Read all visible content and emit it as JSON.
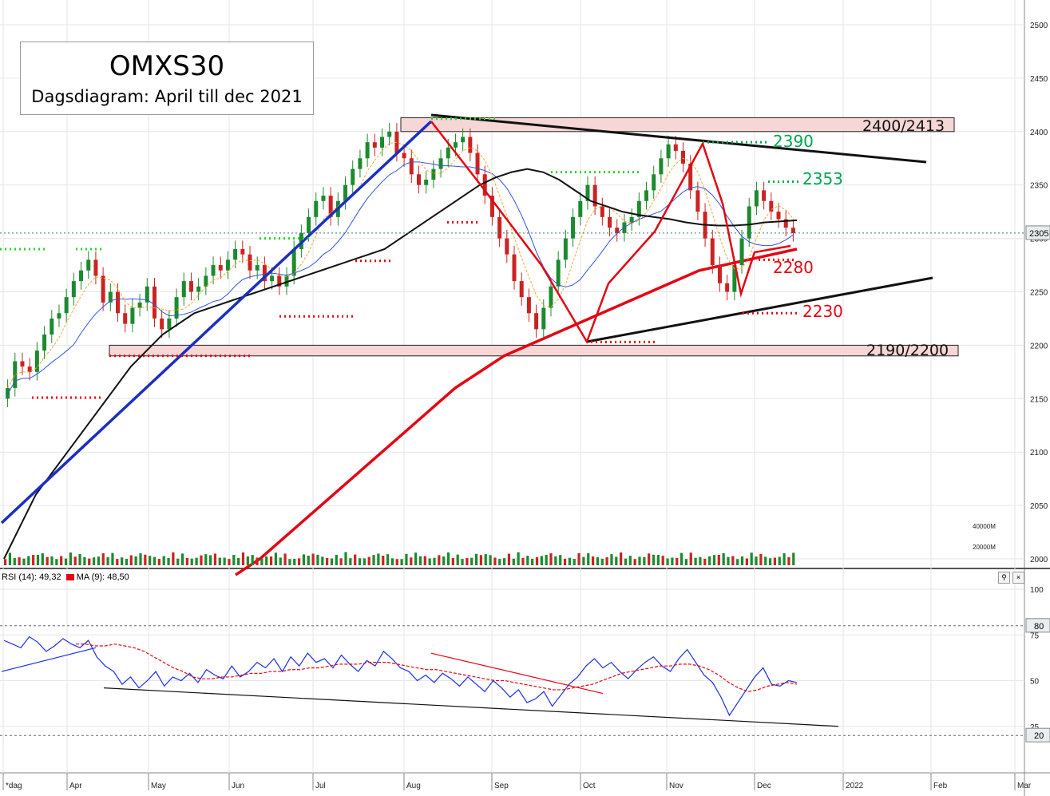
{
  "chart_data": {
    "type": "candlestick",
    "title": "OMXS30",
    "subtitle": "Dagsdiagram: April till dec 2021",
    "x_ticks": [
      "*dag",
      "Apr",
      "May",
      "Jun",
      "Jul",
      "Aug",
      "Sep",
      "Oct",
      "Nov",
      "Dec",
      "2022",
      "Feb",
      "Mar"
    ],
    "price_axis": {
      "ticks": [
        2000,
        2050,
        2100,
        2150,
        2200,
        2250,
        2300,
        2350,
        2400,
        2450,
        2500
      ],
      "ylim": [
        1990,
        2510
      ]
    },
    "last_price": "2305",
    "volume_axis": {
      "ticks": [
        "40000M",
        "20000M"
      ]
    },
    "zones": [
      {
        "label": "2400/2413",
        "low": 2400,
        "high": 2413
      },
      {
        "label": "2190/2200",
        "low": 2190,
        "high": 2200
      }
    ],
    "levels": [
      {
        "label": "2390",
        "value": 2390,
        "color": "#00a651"
      },
      {
        "label": "2353",
        "value": 2353,
        "color": "#00a651"
      },
      {
        "label": "2280",
        "value": 2280,
        "color": "#e30613"
      },
      {
        "label": "2230",
        "value": 2230,
        "color": "#e30613"
      }
    ],
    "close_series": [
      2160,
      2185,
      2180,
      2175,
      2195,
      2210,
      2225,
      2230,
      2245,
      2260,
      2270,
      2280,
      2265,
      2240,
      2250,
      2230,
      2220,
      2235,
      2240,
      2255,
      2225,
      2215,
      2225,
      2245,
      2260,
      2250,
      2255,
      2265,
      2275,
      2270,
      2280,
      2290,
      2285,
      2270,
      2275,
      2260,
      2265,
      2255,
      2265,
      2290,
      2305,
      2320,
      2335,
      2340,
      2320,
      2335,
      2350,
      2365,
      2375,
      2390,
      2385,
      2395,
      2400,
      2380,
      2375,
      2360,
      2350,
      2355,
      2365,
      2375,
      2385,
      2390,
      2395,
      2380,
      2360,
      2340,
      2320,
      2300,
      2285,
      2260,
      2245,
      2230,
      2215,
      2235,
      2255,
      2280,
      2300,
      2320,
      2335,
      2350,
      2330,
      2320,
      2310,
      2305,
      2315,
      2320,
      2335,
      2345,
      2360,
      2375,
      2388,
      2382,
      2370,
      2345,
      2325,
      2300,
      2275,
      2258,
      2250,
      2275,
      2300,
      2330,
      2345,
      2335,
      2325,
      2318,
      2310,
      2305
    ],
    "ma_black_series": [
      2000,
      2030,
      2060,
      2080,
      2100,
      2120,
      2140,
      2160,
      2180,
      2195,
      2210,
      2220,
      2230,
      2235,
      2240,
      2245,
      2250,
      2255,
      2260,
      2265,
      2270,
      2275,
      2280,
      2285,
      2290,
      2300,
      2310,
      2320,
      2330,
      2340,
      2350,
      2357,
      2362,
      2365,
      2362,
      2355,
      2345,
      2335,
      2330,
      2325,
      2322,
      2320,
      2318,
      2315,
      2313,
      2312,
      2312,
      2313,
      2315,
      2316,
      2317
    ],
    "ma200_series": [
      1985,
      2000,
      2020,
      2040,
      2060,
      2080,
      2100,
      2120,
      2140,
      2160,
      2175,
      2190,
      2200,
      2210,
      2220,
      2230,
      2240,
      2250,
      2260,
      2270,
      2275,
      2280,
      2285,
      2290
    ],
    "rsi": {
      "label": "RSI (14): 49,32",
      "ma_label": "MA (9): 48,50",
      "ticks": [
        100,
        75,
        50,
        25
      ],
      "levels": [
        "80",
        "20"
      ],
      "ylim": [
        0,
        100
      ],
      "series": [
        72,
        70,
        68,
        74,
        71,
        66,
        69,
        73,
        70,
        68,
        72,
        63,
        58,
        55,
        48,
        52,
        46,
        50,
        55,
        47,
        52,
        50,
        54,
        49,
        56,
        53,
        51,
        58,
        52,
        55,
        60,
        57,
        62,
        55,
        63,
        58,
        65,
        60,
        62,
        57,
        64,
        59,
        55,
        61,
        58,
        66,
        62,
        57,
        55,
        50,
        53,
        49,
        54,
        51,
        47,
        52,
        48,
        44,
        50,
        46,
        41,
        45,
        38,
        40,
        44,
        36,
        42,
        48,
        52,
        58,
        62,
        57,
        60,
        55,
        51,
        56,
        60,
        63,
        58,
        55,
        62,
        67,
        60,
        53,
        49,
        41,
        31,
        38,
        45,
        52,
        57,
        48,
        47,
        50,
        49
      ],
      "ma_series": [
        70,
        70,
        69,
        69,
        70,
        69,
        68,
        66,
        63,
        60,
        57,
        55,
        52,
        51,
        51,
        52,
        52,
        53,
        54,
        54,
        55,
        55,
        56,
        56,
        57,
        57,
        58,
        59,
        59,
        59,
        60,
        60,
        60,
        59,
        58,
        57,
        56,
        56,
        55,
        54,
        53,
        52,
        51,
        50,
        50,
        49,
        48,
        47,
        46,
        45,
        45,
        46,
        47,
        48,
        50,
        52,
        54,
        55,
        56,
        57,
        58,
        58,
        59,
        59,
        58,
        56,
        53,
        49,
        46,
        44,
        45,
        47,
        48,
        49,
        48
      ]
    }
  }
}
